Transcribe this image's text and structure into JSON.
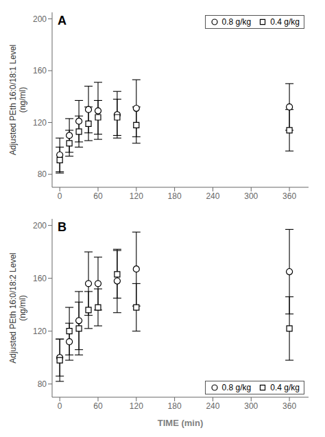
{
  "chart_data": [
    {
      "type": "scatter",
      "title": "A",
      "ylabel": "Adjusted PEth 16:0/18:1 Level\n(ng/ml)",
      "xlim": [
        -12,
        390
      ],
      "ylim": [
        70,
        205
      ],
      "yticks": [
        80,
        120,
        160,
        200
      ],
      "xticks": [
        0,
        60,
        120,
        180,
        240,
        300,
        360
      ],
      "legend": "upper right",
      "grid": false,
      "x": [
        0,
        15,
        30,
        45,
        60,
        90,
        120,
        360
      ],
      "series": [
        {
          "name": "0.8 g/kg",
          "marker": "circle",
          "color": "#000000",
          "values": [
            95,
            110,
            121,
            130,
            129,
            126,
            131,
            132
          ],
          "yerr": [
            13,
            13,
            16,
            18,
            22,
            18,
            22,
            18
          ]
        },
        {
          "name": "0.4 g/kg",
          "marker": "square",
          "color": "#000000",
          "values": [
            91,
            104,
            113,
            119,
            124,
            124,
            118,
            114
          ],
          "yerr": [
            10,
            10,
            12,
            13,
            13,
            14,
            14,
            16
          ]
        }
      ]
    },
    {
      "type": "scatter",
      "title": "B",
      "ylabel": "Adjusted PEth 16:0/18:2 Level\n(ng/ml)",
      "xlabel": "TIME (min)",
      "xlim": [
        -12,
        390
      ],
      "ylim": [
        70,
        205
      ],
      "yticks": [
        80,
        120,
        160,
        200
      ],
      "xticks": [
        0,
        60,
        120,
        180,
        240,
        300,
        360
      ],
      "legend": "lower right",
      "grid": false,
      "x": [
        0,
        15,
        30,
        45,
        60,
        90,
        120,
        360
      ],
      "series": [
        {
          "name": "0.8 g/kg",
          "marker": "circle",
          "color": "#000000",
          "values": [
            100,
            112,
            128,
            156,
            156,
            158,
            167,
            165
          ],
          "yerr": [
            14,
            14,
            22,
            24,
            20,
            24,
            28,
            32
          ]
        },
        {
          "name": "0.4 g/kg",
          "marker": "square",
          "color": "#000000",
          "values": [
            98,
            120,
            122,
            136,
            138,
            163,
            138,
            122
          ],
          "yerr": [
            16,
            18,
            20,
            14,
            14,
            18,
            18,
            24
          ]
        }
      ]
    }
  ]
}
